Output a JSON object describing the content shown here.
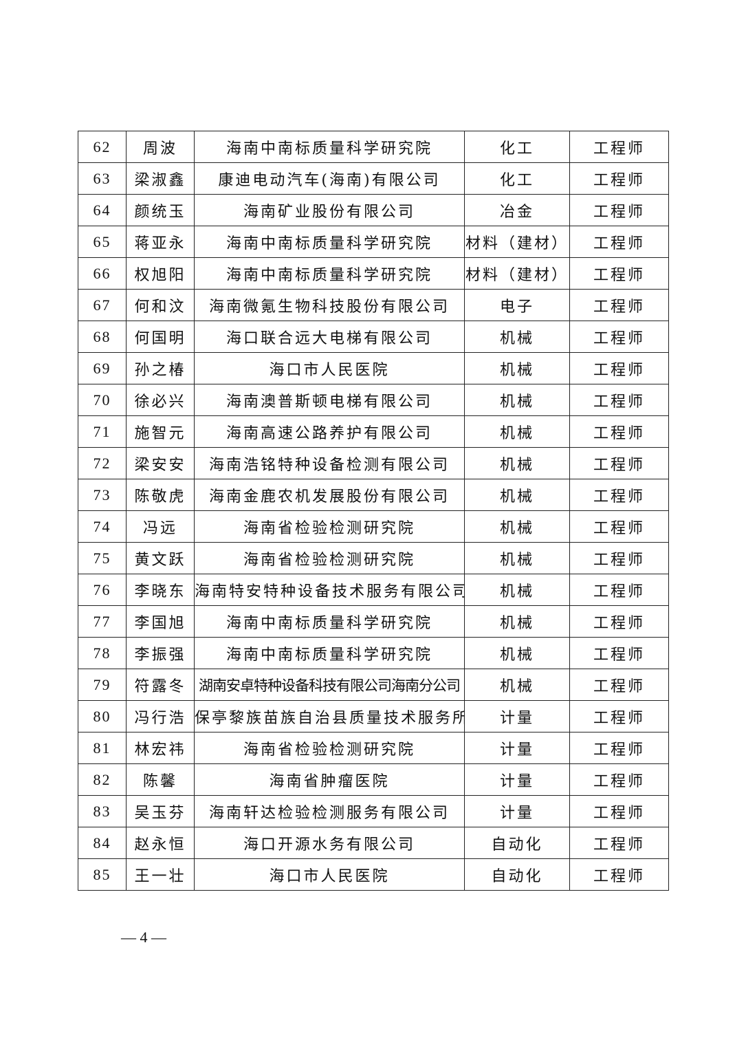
{
  "rows": [
    {
      "no": "62",
      "name": "周波",
      "org": "海南中南标质量科学研究院",
      "field": "化工",
      "title": "工程师"
    },
    {
      "no": "63",
      "name": "梁淑鑫",
      "org": "康迪电动汽车(海南)有限公司",
      "field": "化工",
      "title": "工程师"
    },
    {
      "no": "64",
      "name": "颜统玉",
      "org": "海南矿业股份有限公司",
      "field": "冶金",
      "title": "工程师"
    },
    {
      "no": "65",
      "name": "蒋亚永",
      "org": "海南中南标质量科学研究院",
      "field": "材料（建材）",
      "title": "工程师"
    },
    {
      "no": "66",
      "name": "权旭阳",
      "org": "海南中南标质量科学研究院",
      "field": "材料（建材）",
      "title": "工程师"
    },
    {
      "no": "67",
      "name": "何和汶",
      "org": "海南微氪生物科技股份有限公司",
      "field": "电子",
      "title": "工程师"
    },
    {
      "no": "68",
      "name": "何国明",
      "org": "海口联合远大电梯有限公司",
      "field": "机械",
      "title": "工程师"
    },
    {
      "no": "69",
      "name": "孙之椿",
      "org": "海口市人民医院",
      "field": "机械",
      "title": "工程师"
    },
    {
      "no": "70",
      "name": "徐必兴",
      "org": "海南澳普斯顿电梯有限公司",
      "field": "机械",
      "title": "工程师"
    },
    {
      "no": "71",
      "name": "施智元",
      "org": "海南高速公路养护有限公司",
      "field": "机械",
      "title": "工程师"
    },
    {
      "no": "72",
      "name": "梁安安",
      "org": "海南浩铭特种设备检测有限公司",
      "field": "机械",
      "title": "工程师"
    },
    {
      "no": "73",
      "name": "陈敬虎",
      "org": "海南金鹿农机发展股份有限公司",
      "field": "机械",
      "title": "工程师"
    },
    {
      "no": "74",
      "name": "冯远",
      "org": "海南省检验检测研究院",
      "field": "机械",
      "title": "工程师"
    },
    {
      "no": "75",
      "name": "黄文跃",
      "org": "海南省检验检测研究院",
      "field": "机械",
      "title": "工程师"
    },
    {
      "no": "76",
      "name": "李晓东",
      "org": "海南特安特种设备技术服务有限公司",
      "field": "机械",
      "title": "工程师"
    },
    {
      "no": "77",
      "name": "李国旭",
      "org": "海南中南标质量科学研究院",
      "field": "机械",
      "title": "工程师"
    },
    {
      "no": "78",
      "name": "李振强",
      "org": "海南中南标质量科学研究院",
      "field": "机械",
      "title": "工程师"
    },
    {
      "no": "79",
      "name": "符露冬",
      "org": "湖南安卓特种设备科技有限公司海南分公司",
      "field": "机械",
      "title": "工程师"
    },
    {
      "no": "80",
      "name": "冯行浩",
      "org": "保亭黎族苗族自治县质量技术服务所",
      "field": "计量",
      "title": "工程师"
    },
    {
      "no": "81",
      "name": "林宏祎",
      "org": "海南省检验检测研究院",
      "field": "计量",
      "title": "工程师"
    },
    {
      "no": "82",
      "name": "陈馨",
      "org": "海南省肿瘤医院",
      "field": "计量",
      "title": "工程师"
    },
    {
      "no": "83",
      "name": "吴玉芬",
      "org": "海南轩达检验检测服务有限公司",
      "field": "计量",
      "title": "工程师"
    },
    {
      "no": "84",
      "name": "赵永恒",
      "org": "海口开源水务有限公司",
      "field": "自动化",
      "title": "工程师"
    },
    {
      "no": "85",
      "name": "王一壮",
      "org": "海口市人民医院",
      "field": "自动化",
      "title": "工程师"
    }
  ],
  "footer": {
    "page_number": "— 4 —"
  }
}
